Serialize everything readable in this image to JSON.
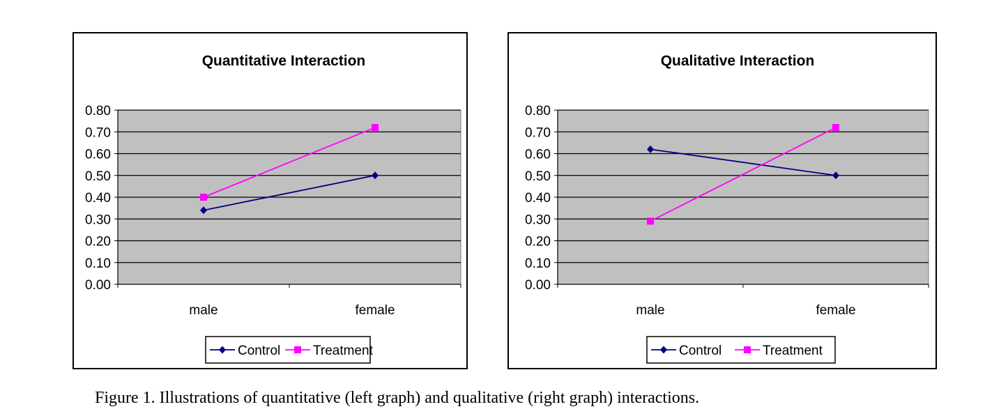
{
  "colors": {
    "plot_background": "#c0c0c0",
    "gridline": "#000000",
    "control": "#000080",
    "treatment": "#ff00ff"
  },
  "chart_data": [
    {
      "type": "line",
      "title": "Quantitative Interaction",
      "categories": [
        "male",
        "female"
      ],
      "ylim": [
        0,
        0.8
      ],
      "yticks": [
        "0.00",
        "0.10",
        "0.20",
        "0.30",
        "0.40",
        "0.50",
        "0.60",
        "0.70",
        "0.80"
      ],
      "grid": true,
      "legend_position": "bottom",
      "series": [
        {
          "name": "Control",
          "marker": "diamond",
          "color": "#000080",
          "values": [
            0.34,
            0.5
          ]
        },
        {
          "name": "Treatment",
          "marker": "square",
          "color": "#ff00ff",
          "values": [
            0.4,
            0.72
          ]
        }
      ]
    },
    {
      "type": "line",
      "title": "Qualitative Interaction",
      "categories": [
        "male",
        "female"
      ],
      "ylim": [
        0,
        0.8
      ],
      "yticks": [
        "0.00",
        "0.10",
        "0.20",
        "0.30",
        "0.40",
        "0.50",
        "0.60",
        "0.70",
        "0.80"
      ],
      "grid": true,
      "legend_position": "bottom",
      "series": [
        {
          "name": "Control",
          "marker": "diamond",
          "color": "#000080",
          "values": [
            0.62,
            0.5
          ]
        },
        {
          "name": "Treatment",
          "marker": "square",
          "color": "#ff00ff",
          "values": [
            0.29,
            0.72
          ]
        }
      ]
    }
  ],
  "caption": "Figure 1. Illustrations of quantitative (left graph) and qualitative (right graph) interactions."
}
